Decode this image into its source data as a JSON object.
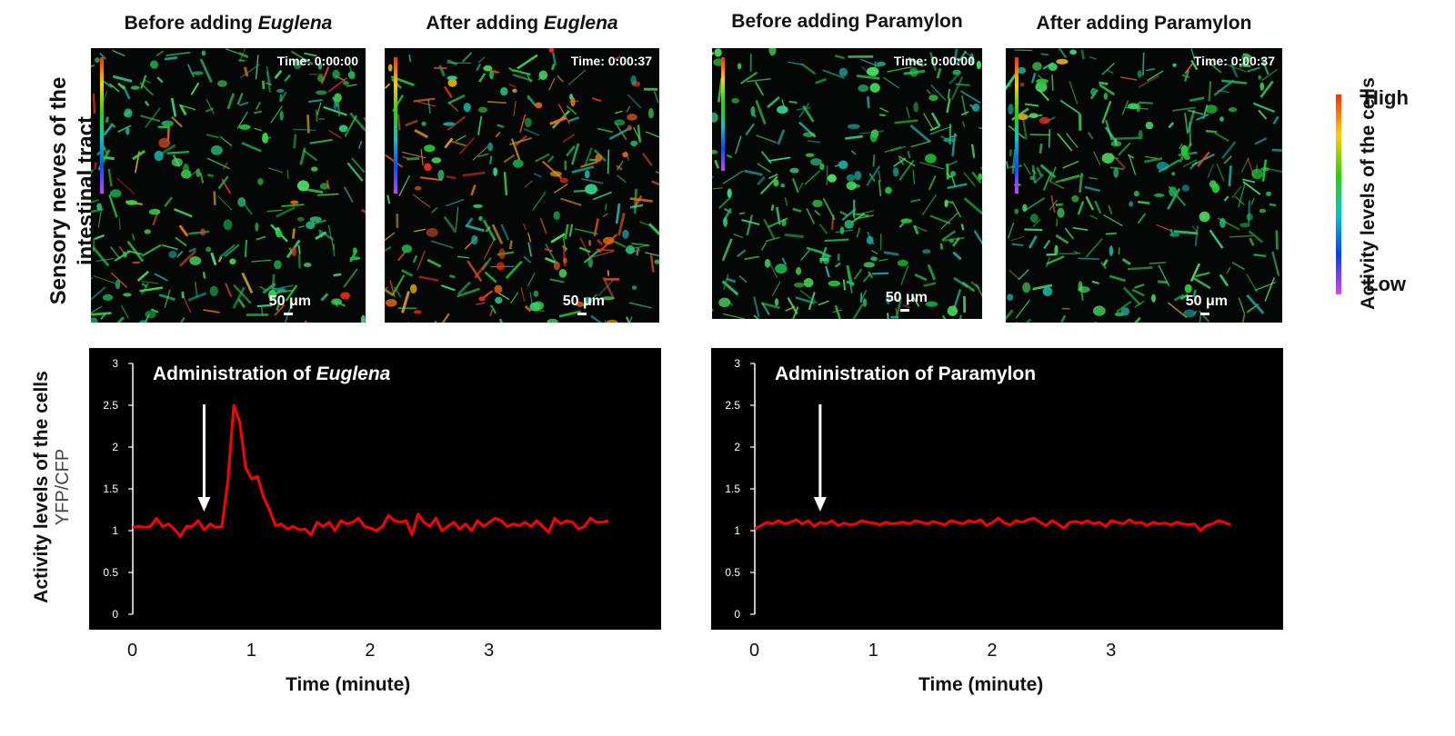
{
  "row_label": {
    "line1": "Sensory nerves of the",
    "line2": "intestinal tract"
  },
  "panels": [
    {
      "prefix": "Before adding ",
      "italic": "Euglena",
      "time": "Time: 0:00:00",
      "scale": "50 μm",
      "activity": 0.2
    },
    {
      "prefix": "After adding ",
      "italic": "Euglena",
      "time": "Time: 0:00:37",
      "scale": "50 μm",
      "activity": 0.85
    },
    {
      "prefix": "Before adding Paramylon",
      "italic": "",
      "time": "Time: 0:00:00",
      "scale": "50 μm",
      "activity": 0.05
    },
    {
      "prefix": "After adding Paramylon",
      "italic": "",
      "time": "Time: 0:00:37",
      "scale": "50 μm",
      "activity": 0.1
    }
  ],
  "colorbar": {
    "label": "Activity levels of the cells",
    "high": "High",
    "low": "Low",
    "colors": [
      "#ff2a00",
      "#ffd000",
      "#2bd400",
      "#00c8c8",
      "#0040ff",
      "#e040ff"
    ]
  },
  "graph_ylabel": {
    "line1": "Activity levels of the cells",
    "line2": "YFP/CFP"
  },
  "chart_data": [
    {
      "type": "line",
      "title_prefix": "Administration of ",
      "title_italic": "Euglena",
      "xlabel": "Time (minute)",
      "ylabel": "YFP/CFP",
      "ylim": [
        0,
        3
      ],
      "yticks": [
        "0",
        "0.5",
        "1",
        "1.5",
        "2",
        "2.5",
        "3"
      ],
      "xticks": [
        "0",
        "1",
        "2",
        "3"
      ],
      "arrow_x": 0.6,
      "line_color": "#ff0000",
      "x": [
        0,
        0.05,
        0.1,
        0.15,
        0.2,
        0.25,
        0.3,
        0.35,
        0.4,
        0.45,
        0.5,
        0.55,
        0.6,
        0.65,
        0.7,
        0.75,
        0.8,
        0.85,
        0.9,
        0.95,
        1.0,
        1.05,
        1.1,
        1.15,
        1.2,
        1.25,
        1.3,
        1.35,
        1.4,
        1.45,
        1.5,
        1.55,
        1.6,
        1.65,
        1.7,
        1.75,
        1.8,
        1.85,
        1.9,
        1.95,
        2.0,
        2.05,
        2.1,
        2.15,
        2.2,
        2.25,
        2.3,
        2.35,
        2.4,
        2.45,
        2.5,
        2.55,
        2.6,
        2.65,
        2.7,
        2.75,
        2.8,
        2.85,
        2.9,
        2.95,
        3.0,
        3.05,
        3.1,
        3.15,
        3.2,
        3.25,
        3.3,
        3.35,
        3.4,
        3.45,
        3.5,
        3.55,
        3.6,
        3.65,
        3.7,
        3.75,
        3.8,
        3.85,
        3.9,
        3.95,
        4.0
      ],
      "y": [
        1.04,
        1.05,
        1.04,
        1.05,
        1.15,
        1.05,
        1.08,
        1.02,
        0.93,
        1.05,
        1.05,
        1.12,
        1.01,
        1.08,
        1.04,
        1.05,
        1.6,
        2.5,
        2.3,
        1.75,
        1.62,
        1.65,
        1.4,
        1.25,
        1.06,
        1.08,
        1.02,
        1.05,
        1.01,
        1.02,
        0.95,
        1.1,
        1.05,
        1.1,
        1.0,
        1.12,
        1.08,
        1.1,
        1.15,
        1.05,
        1.03,
        1.0,
        1.05,
        1.18,
        1.12,
        1.1,
        1.12,
        0.95,
        1.2,
        1.1,
        1.05,
        1.15,
        1.0,
        1.05,
        1.1,
        1.02,
        1.08,
        1.0,
        1.12,
        1.05,
        1.1,
        1.15,
        1.12,
        1.05,
        1.08,
        1.06,
        1.1,
        1.05,
        1.12,
        1.05,
        0.98,
        1.15,
        1.08,
        1.12,
        1.1,
        1.02,
        1.05,
        1.15,
        1.1,
        1.1,
        1.12
      ]
    },
    {
      "type": "line",
      "title_prefix": "Administration of Paramylon",
      "title_italic": "",
      "xlabel": "Time (minute)",
      "ylabel": "",
      "ylim": [
        0,
        3
      ],
      "yticks": [
        "0",
        "0.5",
        "1",
        "1.5",
        "2",
        "2.5",
        "3"
      ],
      "xticks": [
        "0",
        "1",
        "2",
        "3"
      ],
      "arrow_x": 0.55,
      "line_color": "#ff0000",
      "x": [
        0,
        0.05,
        0.1,
        0.15,
        0.2,
        0.25,
        0.3,
        0.35,
        0.4,
        0.45,
        0.5,
        0.55,
        0.6,
        0.65,
        0.7,
        0.75,
        0.8,
        0.85,
        0.9,
        0.95,
        1.0,
        1.05,
        1.1,
        1.15,
        1.2,
        1.25,
        1.3,
        1.35,
        1.4,
        1.45,
        1.5,
        1.55,
        1.6,
        1.65,
        1.7,
        1.75,
        1.8,
        1.85,
        1.9,
        1.95,
        2.0,
        2.05,
        2.1,
        2.15,
        2.2,
        2.25,
        2.3,
        2.35,
        2.4,
        2.45,
        2.5,
        2.55,
        2.6,
        2.65,
        2.7,
        2.75,
        2.8,
        2.85,
        2.9,
        2.95,
        3.0,
        3.05,
        3.1,
        3.15,
        3.2,
        3.25,
        3.3,
        3.35,
        3.4,
        3.45,
        3.5,
        3.55,
        3.6,
        3.65,
        3.7,
        3.75,
        3.8,
        3.85,
        3.9,
        3.95,
        4.0
      ],
      "y": [
        1.02,
        1.06,
        1.1,
        1.08,
        1.12,
        1.08,
        1.1,
        1.13,
        1.08,
        1.12,
        1.05,
        1.1,
        1.08,
        1.12,
        1.06,
        1.09,
        1.07,
        1.08,
        1.12,
        1.1,
        1.09,
        1.07,
        1.1,
        1.08,
        1.09,
        1.1,
        1.08,
        1.12,
        1.1,
        1.08,
        1.11,
        1.09,
        1.07,
        1.12,
        1.1,
        1.08,
        1.12,
        1.1,
        1.13,
        1.06,
        1.1,
        1.15,
        1.09,
        1.07,
        1.12,
        1.1,
        1.13,
        1.15,
        1.1,
        1.06,
        1.12,
        1.08,
        1.03,
        1.1,
        1.11,
        1.09,
        1.12,
        1.08,
        1.1,
        1.05,
        1.12,
        1.1,
        1.08,
        1.13,
        1.09,
        1.1,
        1.06,
        1.1,
        1.08,
        1.09,
        1.07,
        1.1,
        1.08,
        1.07,
        1.08,
        1.0,
        1.06,
        1.08,
        1.12,
        1.1,
        1.07
      ]
    }
  ]
}
